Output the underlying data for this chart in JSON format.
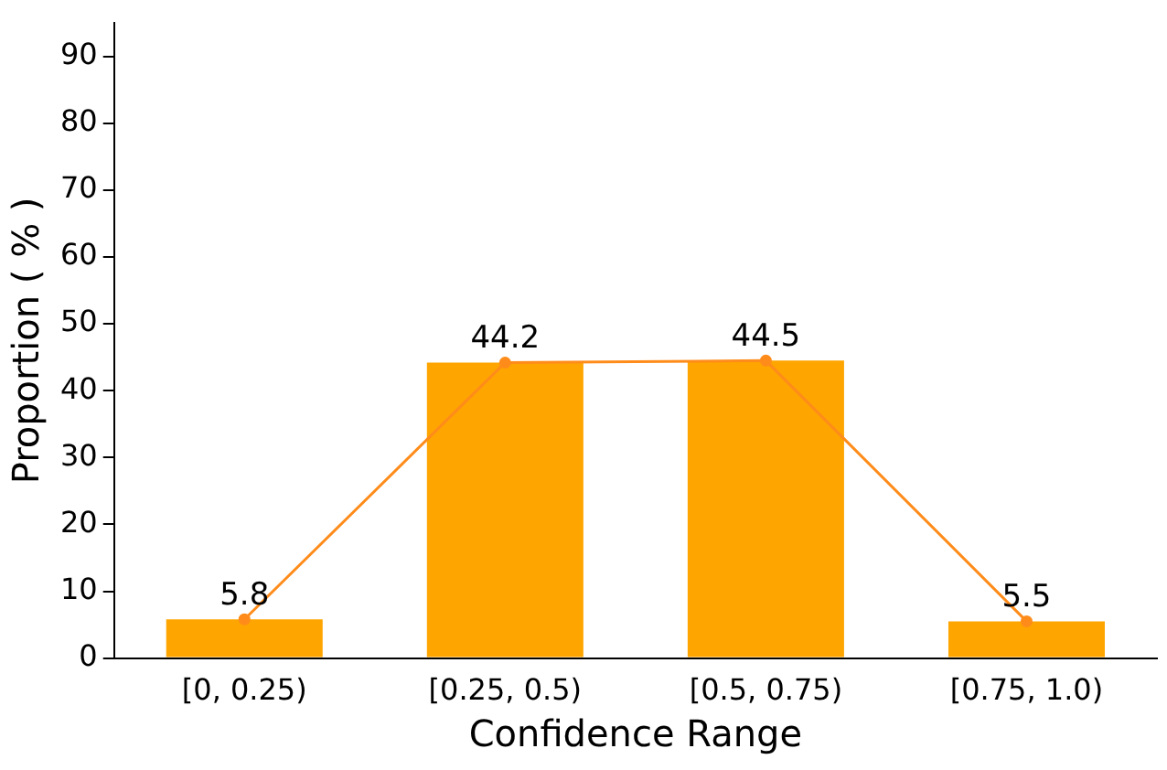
{
  "chart_data": {
    "type": "bar",
    "xlabel": "Confidence Range",
    "ylabel": "Proportion ( % )",
    "categories": [
      "[0, 0.25)",
      "[0.25, 0.5)",
      "[0.5, 0.75)",
      "[0.75, 1.0)"
    ],
    "series": [
      {
        "color": "#ffa500",
        "values": [
          5.8,
          44.2,
          44.5,
          5.5
        ],
        "value_labels": [
          "5.8",
          "44.2",
          "44.5",
          "5.5"
        ]
      },
      {
        "type": "line",
        "color": "#ff8c1a",
        "values": [
          5.8,
          44.2,
          44.5,
          5.5
        ],
        "marker": "circle"
      }
    ],
    "ylim": [
      0,
      95
    ],
    "yticks": [
      0,
      10,
      20,
      30,
      40,
      50,
      60,
      70,
      80,
      90
    ],
    "grid": false,
    "legend": false
  }
}
